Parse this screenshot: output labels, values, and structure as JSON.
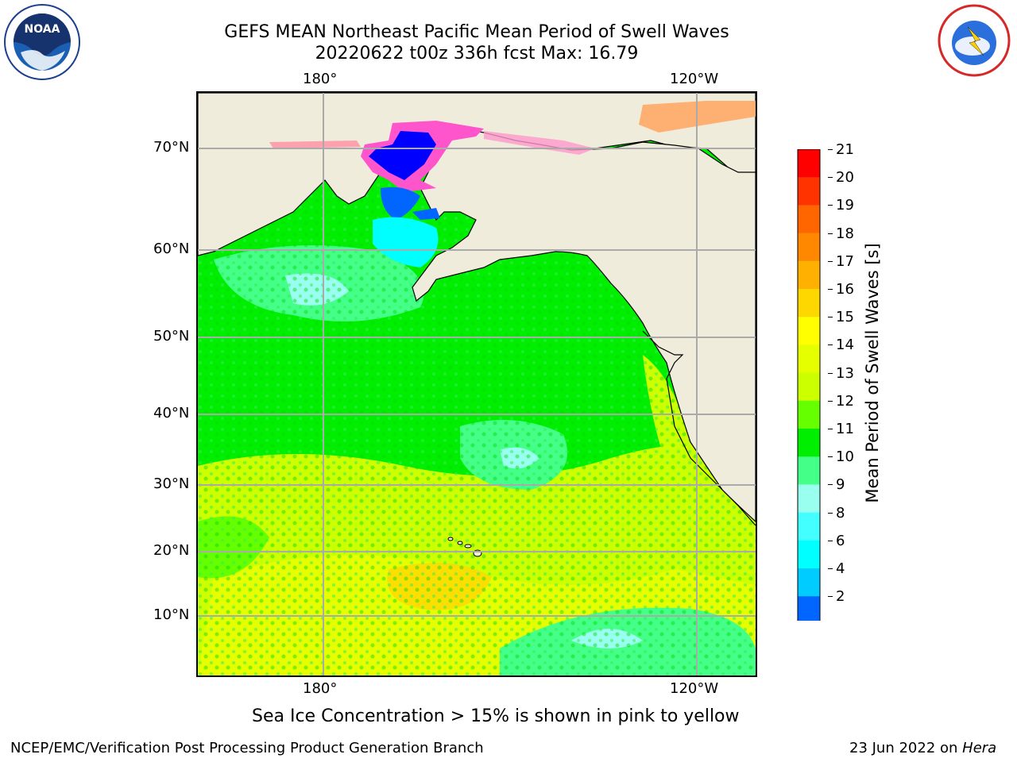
{
  "header": {
    "title_line1": "GEFS MEAN Northeast Pacific Mean Period of Swell Waves",
    "title_line2": "20220622 t00z 336h fcst   Max: 16.79"
  },
  "logos": {
    "left_name": "NOAA",
    "right_name": "NATIONAL WEATHER SERVICE"
  },
  "map": {
    "top_ticks": [
      "180°",
      "120°W"
    ],
    "bottom_ticks": [
      "180°",
      "120°W"
    ],
    "lat_ticks": [
      "70°N",
      "60°N",
      "50°N",
      "40°N",
      "30°N",
      "20°N",
      "10°N"
    ],
    "land_color": "#efecdc"
  },
  "colorbar": {
    "label": "Mean Period of Swell Waves [s]",
    "levels": [
      "21",
      "20",
      "19",
      "18",
      "17",
      "16",
      "15",
      "14",
      "13",
      "12",
      "11",
      "10",
      "9",
      "8",
      "6",
      "4",
      "2"
    ],
    "colors": [
      "#ff0000",
      "#ff3300",
      "#ff6600",
      "#ff8800",
      "#ffb000",
      "#ffd700",
      "#ffff00",
      "#e6ff00",
      "#ccff00",
      "#66ff00",
      "#00ee00",
      "#44ff88",
      "#99ffee",
      "#44ffff",
      "#00ffff",
      "#00ccff",
      "#0066ff"
    ],
    "extend_color": "#0000ff"
  },
  "annotation": "Sea Ice Concentration > 15% is shown in pink to yellow",
  "footer": {
    "left": "NCEP/EMC/Verification Post Processing Product Generation Branch",
    "right_date": "23 Jun 2022 on ",
    "right_machine": "Hera"
  }
}
